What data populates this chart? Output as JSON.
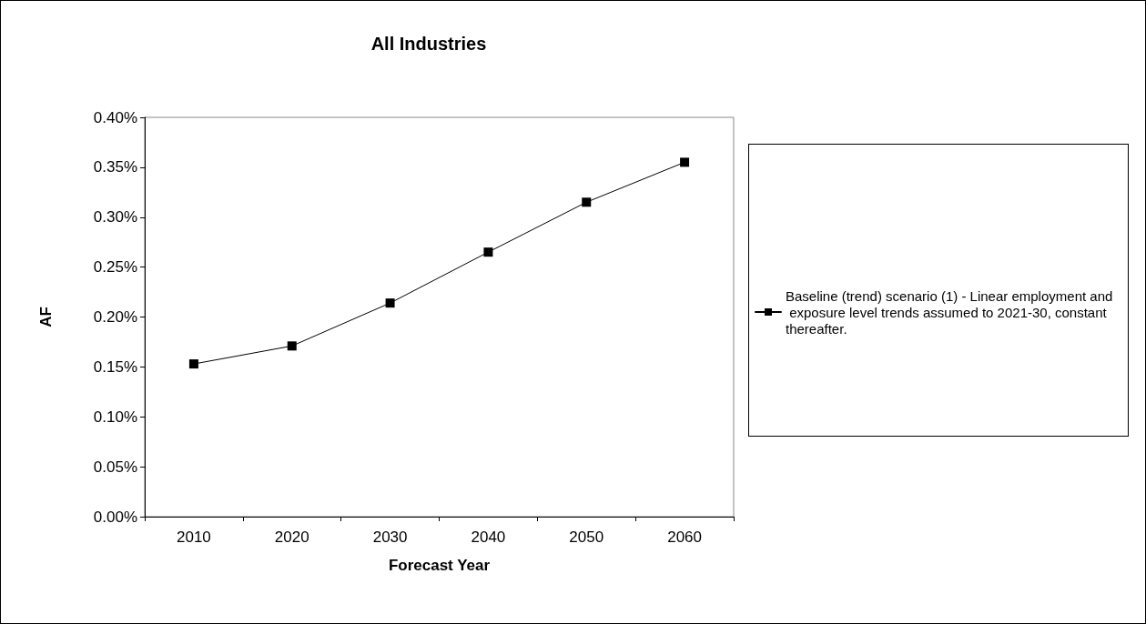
{
  "chart_data": {
    "type": "line",
    "title": "All Industries",
    "xlabel": "Forecast Year",
    "ylabel": "AF",
    "categories": [
      "2010",
      "2020",
      "2030",
      "2040",
      "2050",
      "2060"
    ],
    "series": [
      {
        "name": "Baseline (trend) scenario (1) - Linear employment and exposure level trends assumed to 2021-30, constant thereafter.",
        "color": "#000000",
        "values": [
          0.153,
          0.171,
          0.214,
          0.265,
          0.315,
          0.355
        ]
      }
    ],
    "ylim": [
      0,
      0.4
    ],
    "yticks": [
      {
        "value": 0,
        "label": "0.00%"
      },
      {
        "value": 0.05,
        "label": "0.05%"
      },
      {
        "value": 0.1,
        "label": "0.10%"
      },
      {
        "value": 0.15,
        "label": "0.15%"
      },
      {
        "value": 0.2,
        "label": "0.20%"
      },
      {
        "value": 0.25,
        "label": "0.25%"
      },
      {
        "value": 0.3,
        "label": "0.30%"
      },
      {
        "value": 0.35,
        "label": "0.35%"
      },
      {
        "value": 0.4,
        "label": "0.40%"
      }
    ],
    "grid": false,
    "legend": "right",
    "marker": "square",
    "line_style": "solid"
  }
}
